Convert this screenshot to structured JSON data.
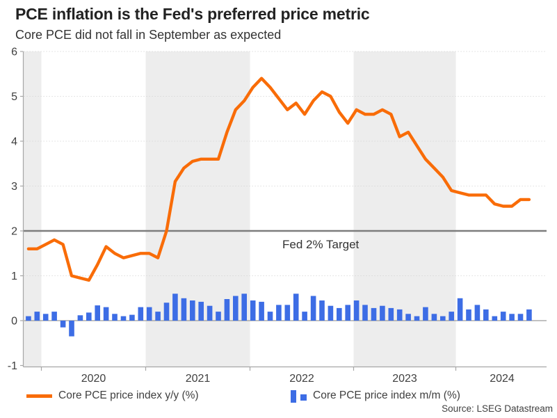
{
  "title": "PCE inflation is the Fed's preferred price metric",
  "subtitle": "Core PCE did not fall in September as expected",
  "source": "Source: LSEG Datastream",
  "colors": {
    "line_orange": "#F96C08",
    "bar_blue": "#3D6DE5",
    "band_gray": "#EDEDED",
    "target_line_gray": "#7D7D7D",
    "zero_line_gray": "#9A9A9A",
    "grid_dot_gray": "#D4D4D4",
    "axis_gray": "#A6A6A6",
    "tick_label_color": "#3F3F3F"
  },
  "legend": [
    {
      "label": "Core PCE price index y/y (%)",
      "type": "line",
      "color": "#F96C08"
    },
    {
      "label": "Core PCE price index m/m (%)",
      "type": "bar",
      "color": "#3D6DE5"
    }
  ],
  "chart_data": {
    "type": "combo: line + bar (monthly)",
    "title": "PCE inflation is the Fed's preferred price metric",
    "subtitle": "Core PCE did not fall in September as expected",
    "xlabel": "",
    "ylabel": "",
    "ylim": [
      -1,
      6
    ],
    "y_ticks": [
      -1,
      0,
      1,
      2,
      3,
      4,
      5,
      6
    ],
    "x_tick_labels": [
      "2020",
      "2021",
      "2022",
      "2023",
      "2024"
    ],
    "shaded_year_bands": [
      "2019 (partial)",
      "2021",
      "2023"
    ],
    "grid": "dotted horizontal gridlines at 1,3,4,5,6; solid zero line",
    "legend_position": "bottom",
    "annotation": {
      "label": "Fed 2% Target",
      "value": 2
    },
    "months": [
      "2019-11",
      "2019-12",
      "2020-01",
      "2020-02",
      "2020-03",
      "2020-04",
      "2020-05",
      "2020-06",
      "2020-07",
      "2020-08",
      "2020-09",
      "2020-10",
      "2020-11",
      "2020-12",
      "2021-01",
      "2021-02",
      "2021-03",
      "2021-04",
      "2021-05",
      "2021-06",
      "2021-07",
      "2021-08",
      "2021-09",
      "2021-10",
      "2021-11",
      "2021-12",
      "2022-01",
      "2022-02",
      "2022-03",
      "2022-04",
      "2022-05",
      "2022-06",
      "2022-07",
      "2022-08",
      "2022-09",
      "2022-10",
      "2022-11",
      "2022-12",
      "2023-01",
      "2023-02",
      "2023-03",
      "2023-04",
      "2023-05",
      "2023-06",
      "2023-07",
      "2023-08",
      "2023-09",
      "2023-10",
      "2023-11",
      "2023-12",
      "2024-01",
      "2024-02",
      "2024-03",
      "2024-04",
      "2024-05",
      "2024-06",
      "2024-07",
      "2024-08",
      "2024-09"
    ],
    "series": [
      {
        "name": "Core PCE price index y/y (%)",
        "type": "line",
        "color": "#F96C08",
        "values": [
          1.6,
          1.6,
          1.7,
          1.8,
          1.7,
          1.0,
          0.95,
          0.9,
          1.25,
          1.65,
          1.5,
          1.4,
          1.45,
          1.5,
          1.5,
          1.4,
          2.0,
          3.1,
          3.4,
          3.55,
          3.6,
          3.6,
          3.6,
          4.2,
          4.7,
          4.9,
          5.2,
          5.4,
          5.2,
          4.95,
          4.7,
          4.85,
          4.6,
          4.9,
          5.1,
          5.0,
          4.65,
          4.4,
          4.7,
          4.6,
          4.6,
          4.7,
          4.6,
          4.1,
          4.2,
          3.9,
          3.6,
          3.4,
          3.2,
          2.9,
          2.85,
          2.8,
          2.8,
          2.8,
          2.6,
          2.55,
          2.55,
          2.7,
          2.7
        ]
      },
      {
        "name": "Core PCE price index m/m (%)",
        "type": "bar",
        "color": "#3D6DE5",
        "values": [
          0.1,
          0.2,
          0.15,
          0.2,
          -0.15,
          -0.35,
          0.12,
          0.18,
          0.34,
          0.3,
          0.15,
          0.1,
          0.13,
          0.3,
          0.3,
          0.2,
          0.4,
          0.6,
          0.5,
          0.45,
          0.42,
          0.33,
          0.2,
          0.48,
          0.55,
          0.6,
          0.45,
          0.42,
          0.2,
          0.35,
          0.35,
          0.6,
          0.2,
          0.55,
          0.45,
          0.33,
          0.28,
          0.35,
          0.45,
          0.35,
          0.28,
          0.33,
          0.28,
          0.25,
          0.15,
          0.1,
          0.3,
          0.15,
          0.1,
          0.2,
          0.5,
          0.25,
          0.35,
          0.25,
          0.1,
          0.2,
          0.15,
          0.15,
          0.25
        ]
      }
    ]
  }
}
